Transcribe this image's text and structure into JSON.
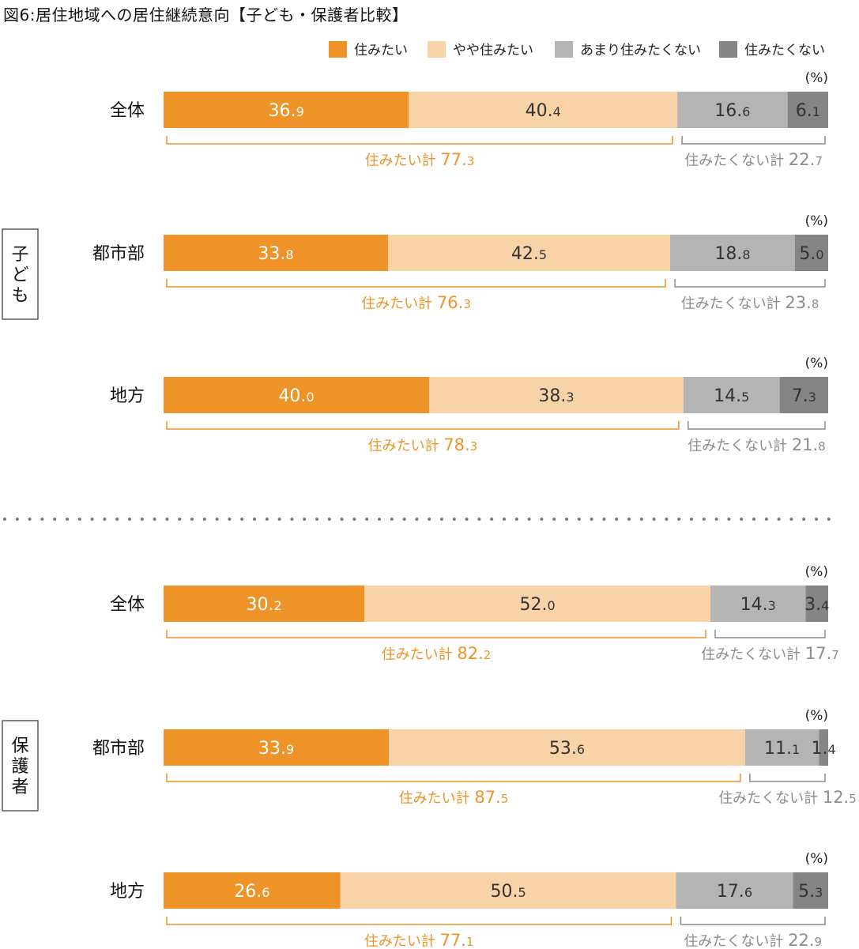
{
  "title": "図6:居住地域への居住継続意向【子ども・保護者比較】",
  "unit": "(%)",
  "colors": {
    "want": "#ee9327",
    "somewhat": "#f9d3a8",
    "not_really": "#b4b4b4",
    "not": "#858585",
    "total_want_text": "#ee9327",
    "total_not_text": "#8c8c8c"
  },
  "chart_data": {
    "type": "bar",
    "orientation": "horizontal-stacked",
    "legend": [
      "住みたい",
      "やや住みたい",
      "あまり住みたくない",
      "住みたくない"
    ],
    "legend_position": "top-right",
    "total_labels": {
      "want": "住みたい計",
      "not": "住みたくない計"
    },
    "groups": [
      {
        "name": "子ども",
        "rows": [
          {
            "label": "全体",
            "values": [
              36.9,
              40.4,
              16.6,
              6.1
            ],
            "total_want": 77.3,
            "total_not": 22.7
          },
          {
            "label": "都市部",
            "values": [
              33.8,
              42.5,
              18.8,
              5.0
            ],
            "total_want": 76.3,
            "total_not": 23.8
          },
          {
            "label": "地方",
            "values": [
              40.0,
              38.3,
              14.5,
              7.3
            ],
            "total_want": 78.3,
            "total_not": 21.8
          }
        ]
      },
      {
        "name": "保護者",
        "rows": [
          {
            "label": "全体",
            "values": [
              30.2,
              52.0,
              14.3,
              3.4
            ],
            "total_want": 82.2,
            "total_not": 17.7
          },
          {
            "label": "都市部",
            "values": [
              33.9,
              53.6,
              11.1,
              1.4
            ],
            "total_want": 87.5,
            "total_not": 12.5
          },
          {
            "label": "地方",
            "values": [
              26.6,
              50.5,
              17.6,
              5.3
            ],
            "total_want": 77.1,
            "total_not": 22.9
          }
        ]
      }
    ]
  }
}
